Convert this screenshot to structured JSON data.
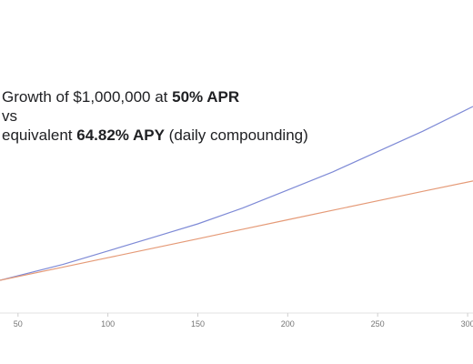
{
  "chart_data": {
    "type": "line",
    "title": {
      "line1_prefix": "Growth of $1,000,000 at ",
      "line1_bold": "50% APR",
      "line2": "vs",
      "line3_prefix": "equivalent ",
      "line3_bold": "64.82% APY",
      "line3_suffix": " (daily compounding)"
    },
    "xlabel": "",
    "ylabel": "",
    "x_ticks": [
      "50",
      "100",
      "150",
      "200",
      "250",
      "300"
    ],
    "xlim": [
      40,
      303
    ],
    "grid": false,
    "legend": "none",
    "series": [
      {
        "style": "blue",
        "color": "#7e8ad6",
        "x": [
          40,
          75,
          100,
          125,
          150,
          175,
          200,
          225,
          250,
          275,
          303
        ],
        "y": [
          1.0,
          1.07,
          1.13,
          1.19,
          1.25,
          1.32,
          1.4,
          1.48,
          1.57,
          1.66,
          1.77
        ]
      },
      {
        "style": "orange",
        "color": "#e59a77",
        "x": [
          40,
          75,
          100,
          125,
          150,
          175,
          200,
          225,
          250,
          275,
          303
        ],
        "y": [
          1.0,
          1.058,
          1.1,
          1.142,
          1.184,
          1.226,
          1.268,
          1.31,
          1.352,
          1.394,
          1.44
        ]
      }
    ]
  }
}
